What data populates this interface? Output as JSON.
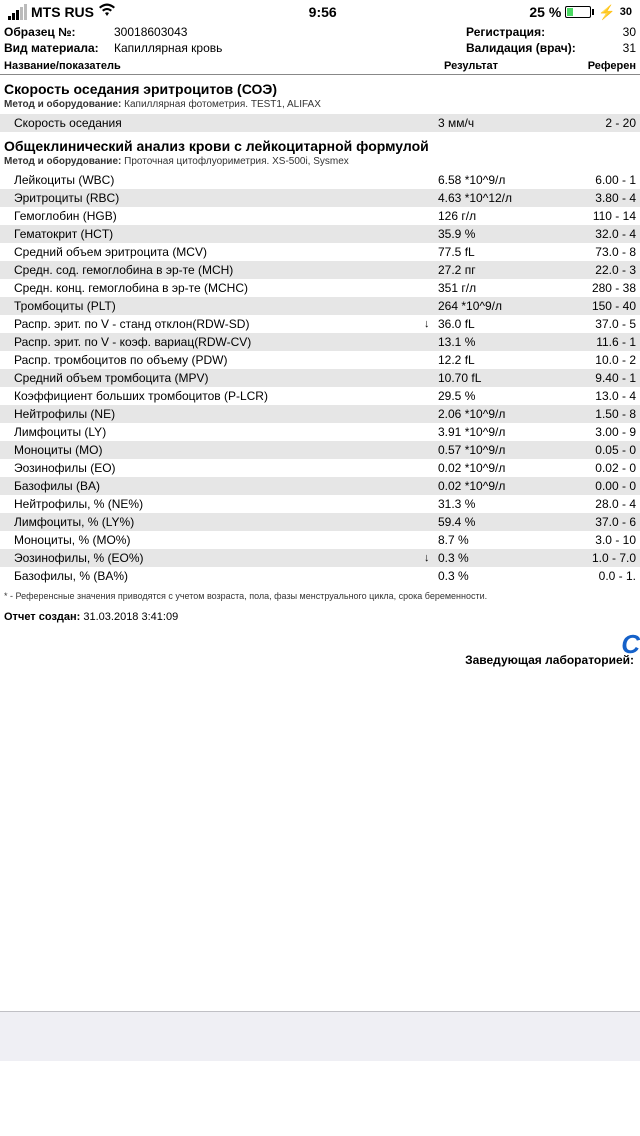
{
  "status": {
    "carrier": "MTS RUS",
    "time": "9:56",
    "battery_pct": "25 %",
    "charge_text": "30"
  },
  "header": {
    "sample_label": "Образец №:",
    "sample_val": "30018603043",
    "material_label": "Вид материала:",
    "material_val": "Капиллярная кровь",
    "reg_label": "Регистрация:",
    "reg_val": "30",
    "valid_label": "Валидация (врач):",
    "valid_val": "31"
  },
  "cols": {
    "name": "Название/показатель",
    "result": "Результат",
    "ref": "Референ"
  },
  "s1": {
    "title": "Скорость оседания эритроцитов (СОЭ)",
    "method_label": "Метод и оборудование:",
    "method": "Капиллярная фотометрия. TEST1, ALIFAX",
    "row": {
      "name": "Скорость оседания",
      "val": "3 мм/ч",
      "ref": "2 - 20"
    }
  },
  "s2": {
    "title": "Общеклинический анализ крови с лейкоцитарной формулой",
    "method_label": "Метод и оборудование:",
    "method": "Проточная цитофлуориметрия. XS-500i, Sysmex"
  },
  "rows": [
    {
      "n": "Лейкоциты (WBC)",
      "v": "6.58 *10^9/л",
      "r": "6.00 - 1",
      "f": ""
    },
    {
      "n": "Эритроциты (RBC)",
      "v": "4.63 *10^12/л",
      "r": "3.80 - 4",
      "f": ""
    },
    {
      "n": "Гемоглобин (HGB)",
      "v": "126 г/л",
      "r": "110 - 14",
      "f": ""
    },
    {
      "n": "Гематокрит (HCT)",
      "v": "35.9 %",
      "r": "32.0 - 4",
      "f": ""
    },
    {
      "n": "Средний объем эритроцита (MCV)",
      "v": "77.5 fL",
      "r": "73.0 - 8",
      "f": ""
    },
    {
      "n": "Средн. сод. гемоглобина в эр-те (MCH)",
      "v": "27.2 пг",
      "r": "22.0 - 3",
      "f": ""
    },
    {
      "n": "Средн. конц. гемоглобина в эр-те (MCHC)",
      "v": "351 г/л",
      "r": "280 - 38",
      "f": ""
    },
    {
      "n": "Тромбоциты (PLT)",
      "v": "264 *10^9/л",
      "r": "150 - 40",
      "f": ""
    },
    {
      "n": "Распр. эрит. по V - станд отклон(RDW-SD)",
      "v": "36.0 fL",
      "r": "37.0 - 5",
      "f": "↓"
    },
    {
      "n": "Распр. эрит. по V - коэф. вариац(RDW-CV)",
      "v": "13.1 %",
      "r": "11.6 - 1",
      "f": ""
    },
    {
      "n": "Распр. тромбоцитов по объему (PDW)",
      "v": "12.2 fL",
      "r": "10.0 - 2",
      "f": ""
    },
    {
      "n": "Средний объем тромбоцита (MPV)",
      "v": "10.70 fL",
      "r": "9.40 - 1",
      "f": ""
    },
    {
      "n": "Коэффициент больших тромбоцитов (P-LCR)",
      "v": "29.5 %",
      "r": "13.0 - 4",
      "f": ""
    },
    {
      "n": "Нейтрофилы (NE)",
      "v": "2.06 *10^9/л",
      "r": "1.50 - 8",
      "f": ""
    },
    {
      "n": "Лимфоциты (LY)",
      "v": "3.91 *10^9/л",
      "r": "3.00 - 9",
      "f": ""
    },
    {
      "n": "Моноциты (MO)",
      "v": "0.57 *10^9/л",
      "r": "0.05 - 0",
      "f": ""
    },
    {
      "n": "Эозинофилы (EO)",
      "v": "0.02 *10^9/л",
      "r": "0.02 - 0",
      "f": ""
    },
    {
      "n": "Базофилы (BA)",
      "v": "0.02 *10^9/л",
      "r": "0.00 - 0",
      "f": ""
    },
    {
      "n": "Нейтрофилы, % (NE%)",
      "v": "31.3 %",
      "r": "28.0 - 4",
      "f": ""
    },
    {
      "n": "Лимфоциты, % (LY%)",
      "v": "59.4 %",
      "r": "37.0 - 6",
      "f": ""
    },
    {
      "n": "Моноциты, % (MO%)",
      "v": "8.7 %",
      "r": "3.0 - 10",
      "f": ""
    },
    {
      "n": "Эозинофилы, % (EO%)",
      "v": "0.3 %",
      "r": "1.0 - 7.0",
      "f": "↓"
    },
    {
      "n": "Базофилы, % (BA%)",
      "v": "0.3 %",
      "r": "0.0 - 1.",
      "f": ""
    }
  ],
  "footnote": "* - Референсные значения приводятся с учетом возраста, пола, фазы менструального цикла, срока беременности.",
  "created_label": "Отчет создан:",
  "created_val": "31.03.2018  3:41:09",
  "sign": "Заведующая лабораторией:"
}
